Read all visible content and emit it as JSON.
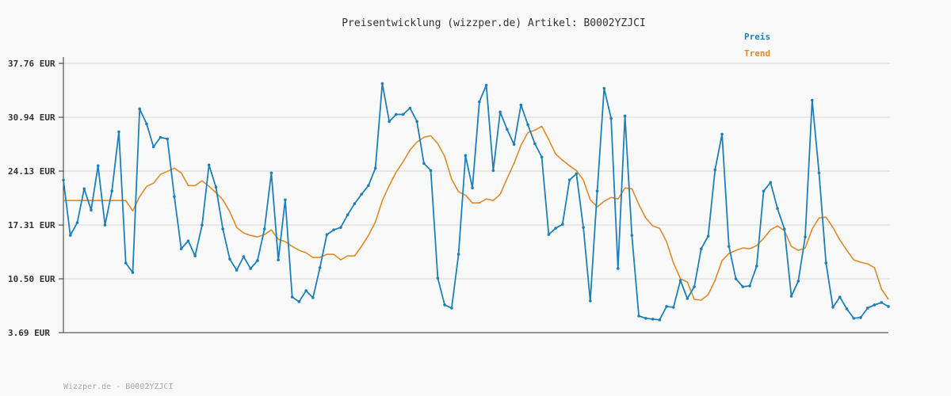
{
  "footer": "Wizzper.de - B0002YZJCI",
  "colors": {
    "preis": "#1f80b8",
    "trend": "#e08a2a",
    "grid": "#dcdcdc",
    "axis": "#333333"
  },
  "chart_data": {
    "type": "line",
    "title": "Preisentwicklung (wizzper.de) Artikel: B0002YZJCI",
    "ylim": [
      3.69,
      37.76
    ],
    "yticks": [
      3.69,
      10.5,
      17.31,
      24.13,
      30.94,
      37.76
    ],
    "ytick_labels": [
      "3.69 EUR",
      "10.50 EUR",
      "17.31 EUR",
      "24.13 EUR",
      "30.94 EUR",
      "37.76 EUR"
    ],
    "grid": true,
    "legend": "top-right",
    "series": [
      {
        "name": "Preis",
        "values": [
          23.0,
          16.0,
          17.6,
          21.9,
          19.2,
          24.8,
          17.3,
          21.6,
          29.1,
          12.5,
          11.3,
          32.0,
          30.1,
          27.2,
          28.4,
          28.2,
          20.9,
          14.3,
          15.3,
          13.4,
          17.3,
          24.9,
          22.1,
          16.8,
          13.0,
          11.6,
          13.3,
          11.8,
          12.8,
          16.8,
          23.9,
          12.9,
          20.5,
          8.2,
          7.6,
          9.0,
          8.1,
          11.9,
          16.1,
          16.7,
          17.0,
          18.6,
          20.0,
          21.2,
          22.3,
          24.5,
          35.2,
          30.4,
          31.3,
          31.3,
          32.1,
          30.4,
          25.1,
          24.2,
          10.6,
          7.2,
          6.8,
          13.6,
          26.1,
          22.0,
          32.9,
          35.0,
          24.2,
          31.6,
          29.4,
          27.5,
          32.5,
          30.0,
          27.6,
          25.9,
          16.1,
          16.9,
          17.4,
          23.0,
          23.8,
          17.0,
          7.7,
          21.6,
          34.6,
          30.8,
          11.8,
          31.1,
          16.0,
          5.8,
          5.5,
          5.4,
          5.3,
          7.0,
          6.9,
          10.3,
          8.0,
          9.5,
          14.3,
          15.9,
          24.3,
          28.8,
          14.6,
          10.5,
          9.5,
          9.6,
          12.1,
          21.6,
          22.7,
          19.4,
          16.8,
          8.3,
          10.2,
          15.8,
          33.1,
          23.9,
          12.5,
          6.9,
          8.2,
          6.7,
          5.5,
          5.6,
          6.8,
          7.2,
          7.5,
          7.0
        ],
        "color": "#1f80b8"
      },
      {
        "name": "Trend",
        "values": [
          20.4,
          20.4,
          20.4,
          20.4,
          20.4,
          20.4,
          20.4,
          20.4,
          20.4,
          20.4,
          19.1,
          20.9,
          22.2,
          22.6,
          23.7,
          24.1,
          24.5,
          23.9,
          22.3,
          22.3,
          22.9,
          22.2,
          21.4,
          20.5,
          19.0,
          17.0,
          16.3,
          16.0,
          15.8,
          16.1,
          16.7,
          15.5,
          15.2,
          14.6,
          14.1,
          13.8,
          13.2,
          13.2,
          13.6,
          13.6,
          12.9,
          13.4,
          13.4,
          14.6,
          16.0,
          17.7,
          20.4,
          22.3,
          24.0,
          25.3,
          26.8,
          27.8,
          28.4,
          28.6,
          27.6,
          26.0,
          23.1,
          21.5,
          21.1,
          20.1,
          20.1,
          20.6,
          20.4,
          21.2,
          23.2,
          25.1,
          27.4,
          29.0,
          29.3,
          29.8,
          28.1,
          26.3,
          25.5,
          24.8,
          24.2,
          23.0,
          20.5,
          19.6,
          20.3,
          20.8,
          20.6,
          22.0,
          21.9,
          19.9,
          18.2,
          17.2,
          16.9,
          15.2,
          12.5,
          10.5,
          10.1,
          7.9,
          7.8,
          8.5,
          10.3,
          12.8,
          13.7,
          14.1,
          14.4,
          14.3,
          14.7,
          15.6,
          16.7,
          17.2,
          16.6,
          14.6,
          14.1,
          14.4,
          16.8,
          18.2,
          18.3,
          17.0,
          15.4,
          14.1,
          12.9,
          12.6,
          12.4,
          11.9,
          9.2,
          7.9
        ],
        "color": "#e08a2a"
      }
    ]
  }
}
